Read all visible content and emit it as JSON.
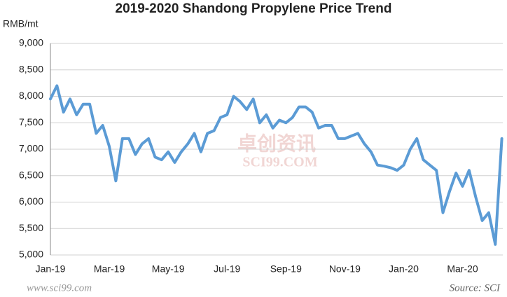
{
  "chart_data": {
    "type": "line",
    "title": "2019-2020 Shandong Propylene Price Trend",
    "y_label": "RMB/mt",
    "source": "Source: SCI",
    "watermark": [
      "卓创资讯",
      "SCI99.COM"
    ],
    "site": "www.sci99.com",
    "categories": [
      "Jan-19",
      null,
      null,
      null,
      null,
      null,
      null,
      null,
      null,
      "Mar-19",
      null,
      null,
      null,
      null,
      null,
      null,
      null,
      null,
      "May-19",
      null,
      null,
      null,
      null,
      null,
      null,
      null,
      null,
      "Jul-19",
      null,
      null,
      null,
      null,
      null,
      null,
      null,
      null,
      "Sep-19",
      null,
      null,
      null,
      null,
      null,
      null,
      null,
      null,
      "Nov-19",
      null,
      null,
      null,
      null,
      null,
      null,
      null,
      null,
      "Jan-20",
      null,
      null,
      null,
      null,
      null,
      null,
      null,
      null,
      "Mar-20",
      null,
      null,
      null,
      null,
      null,
      null
    ],
    "series": [
      {
        "name": "Shandong Propylene",
        "color": "#5b9bd5",
        "values": [
          7950,
          8200,
          7700,
          7950,
          7650,
          7850,
          7850,
          7300,
          7450,
          7050,
          6400,
          7200,
          7200,
          6900,
          7100,
          7200,
          6850,
          6800,
          6950,
          6750,
          6950,
          7100,
          7300,
          6950,
          7300,
          7350,
          7600,
          7650,
          8000,
          7900,
          7750,
          7950,
          7500,
          7650,
          7400,
          7550,
          7500,
          7600,
          7800,
          7800,
          7700,
          7400,
          7450,
          7450,
          7200,
          7200,
          7250,
          7300,
          7100,
          6950,
          6700,
          6680,
          6650,
          6600,
          6700,
          7000,
          7200,
          6800,
          6700,
          6600,
          5800,
          6200,
          6550,
          6300,
          6600,
          6100,
          5650,
          5800,
          5200,
          7200
        ]
      }
    ],
    "ylim": [
      5000,
      9000
    ],
    "yticks": [
      {
        "value": 5000,
        "label": "5,000"
      },
      {
        "value": 5500,
        "label": "5,500"
      },
      {
        "value": 6000,
        "label": "6,000"
      },
      {
        "value": 6500,
        "label": "6,500"
      },
      {
        "value": 7000,
        "label": "7,000"
      },
      {
        "value": 7500,
        "label": "7,500"
      },
      {
        "value": 8000,
        "label": "8,000"
      },
      {
        "value": 8500,
        "label": "8,500"
      },
      {
        "value": 9000,
        "label": "9,000"
      }
    ],
    "grid": true
  }
}
